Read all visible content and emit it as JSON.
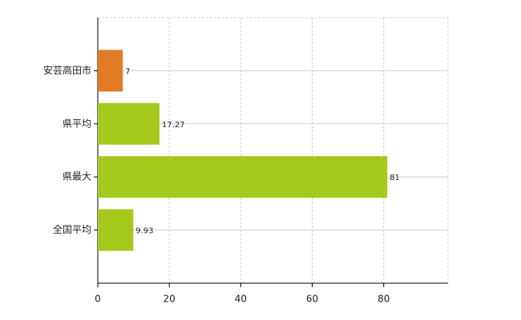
{
  "chart_data": {
    "type": "bar",
    "orientation": "horizontal",
    "categories": [
      "安芸高田市",
      "県平均",
      "県最大",
      "全国平均"
    ],
    "values": [
      7,
      17.27,
      81,
      9.93
    ],
    "colors": [
      "#e27b26",
      "#a5c81c",
      "#a5c81c",
      "#a5c81c"
    ],
    "xlim": [
      0,
      98
    ],
    "xticks": [
      0,
      20,
      40,
      60,
      80
    ],
    "grid": true
  }
}
